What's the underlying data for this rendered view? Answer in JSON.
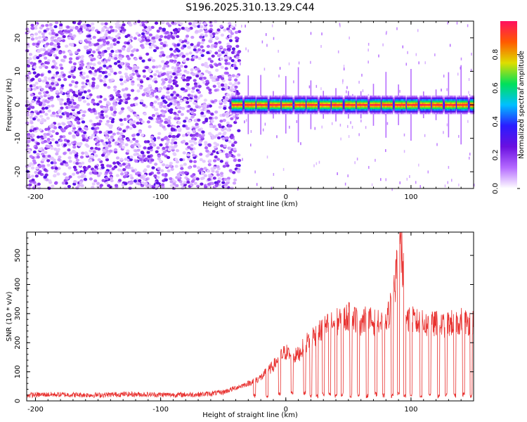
{
  "title": "S196.2025.310.13.29.C44",
  "colors": {
    "background": "#ffffff",
    "axis": "#000000",
    "snr_line": "#e8312f",
    "spec_colormap": [
      "#ffffff",
      "#b469ff",
      "#6a10e0",
      "#2a1cff",
      "#00c0ff",
      "#00e05a",
      "#dede00",
      "#ff5a00",
      "#ff1060"
    ]
  },
  "chart_data": [
    {
      "type": "heatmap",
      "title": "S196.2025.310.13.29.C44",
      "xlabel": "Height of straight line (km)",
      "ylabel": "Frequency (Hz)",
      "xlim": [
        -207,
        150
      ],
      "ylim": [
        -25,
        25
      ],
      "xticks": [
        -200,
        -100,
        0,
        100
      ],
      "xtick_labels": [
        "-200",
        "-100",
        "0",
        "100"
      ],
      "yticks": [
        -20,
        -10,
        0,
        10,
        20
      ],
      "ytick_labels": [
        "-20",
        "-10",
        "0",
        "10",
        "20"
      ],
      "description_of_values": "Scattered low-amplitude noise (0.1-0.3) for heights below about -45 km; a strong narrow band centered near 0 Hz (amplitude 0.7-1.0) from about -45 km to 150 km, interrupted roughly every 10 km by weaker vertical streaks.",
      "band": {
        "x_start": -45,
        "x_end": 150,
        "center_hz": 0,
        "halfwidth_hz": 1.5,
        "peak_amplitude": 1.0
      },
      "colorbar": {
        "label": "Normalized spectral amplitude",
        "range": [
          0.0,
          1.0
        ],
        "ticks": [
          0.0,
          0.2,
          0.4,
          0.6,
          0.8
        ],
        "tick_labels": [
          "0.0",
          "0.2",
          "0.4",
          "0.6",
          "0.8"
        ]
      }
    },
    {
      "type": "line",
      "xlabel": "Height of straight line (km)",
      "ylabel": "SNR (10 * v/v)",
      "xlim": [
        -207,
        150
      ],
      "ylim": [
        0,
        580
      ],
      "xticks": [
        -200,
        -100,
        0,
        100
      ],
      "xtick_labels": [
        "-200",
        "-100",
        "0",
        "100"
      ],
      "yticks": [
        0,
        100,
        200,
        300,
        400,
        500
      ],
      "ytick_labels": [
        "0",
        "100",
        "200",
        "300",
        "400",
        "500"
      ],
      "series": [
        {
          "name": "SNR",
          "color": "#e8312f",
          "x": [
            -207,
            -190,
            -170,
            -150,
            -130,
            -110,
            -90,
            -70,
            -60,
            -50,
            -40,
            -30,
            -20,
            -15,
            -10,
            -5,
            0,
            5,
            10,
            15,
            20,
            25,
            30,
            35,
            40,
            45,
            50,
            55,
            60,
            65,
            70,
            75,
            80,
            85,
            88,
            90,
            93,
            95,
            100,
            105,
            110,
            115,
            120,
            125,
            130,
            135,
            140,
            145,
            150
          ],
          "y": [
            20,
            22,
            21,
            20,
            23,
            22,
            21,
            22,
            25,
            30,
            45,
            60,
            80,
            100,
            120,
            150,
            170,
            150,
            160,
            190,
            220,
            230,
            250,
            260,
            270,
            280,
            290,
            285,
            270,
            280,
            270,
            265,
            260,
            350,
            420,
            560,
            400,
            300,
            280,
            270,
            265,
            260,
            265,
            260,
            265,
            270,
            275,
            270,
            275
          ]
        }
      ],
      "dips": {
        "x": [
          -25,
          -15,
          -5,
          5,
          15,
          20,
          25,
          30,
          35,
          40,
          45,
          52,
          58,
          65,
          72,
          78,
          85,
          90,
          95,
          100,
          108,
          115,
          122,
          128,
          135,
          142,
          148
        ],
        "y": [
          10,
          10,
          15,
          20,
          20,
          10,
          10,
          15,
          15,
          10,
          15,
          10,
          15,
          10,
          15,
          10,
          10,
          15,
          10,
          15,
          10,
          15,
          10,
          15,
          10,
          15,
          10
        ]
      }
    }
  ]
}
